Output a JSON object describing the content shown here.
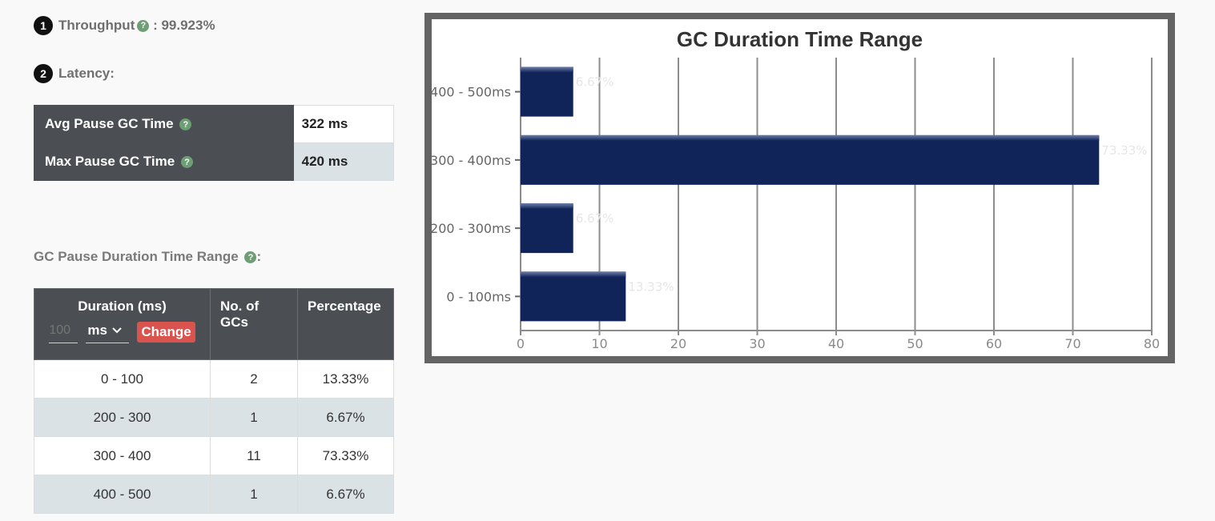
{
  "throughput": {
    "number": "1",
    "label": "Throughput",
    "help": "?",
    "separator": " : ",
    "value": "99.923%"
  },
  "latency": {
    "number": "2",
    "label": "Latency:",
    "rows": [
      {
        "label": "Avg Pause GC Time",
        "value": "322 ms"
      },
      {
        "label": "Max Pause GC Time",
        "value": "420 ms"
      }
    ]
  },
  "range_section": {
    "heading": "GC Pause Duration Time Range",
    "heading_suffix": ":",
    "headers": {
      "duration": "Duration (ms)",
      "count": "No. of GCs",
      "percentage": "Percentage"
    },
    "unit_input_placeholder": "100",
    "unit_select_value": "ms",
    "change_label": "Change",
    "rows": [
      {
        "duration": "0 - 100",
        "count": "2",
        "percentage": "13.33%"
      },
      {
        "duration": "200 - 300",
        "count": "1",
        "percentage": "6.67%"
      },
      {
        "duration": "300 - 400",
        "count": "11",
        "percentage": "73.33%"
      },
      {
        "duration": "400 - 500",
        "count": "1",
        "percentage": "6.67%"
      }
    ]
  },
  "chart_data": {
    "type": "bar",
    "orientation": "horizontal",
    "title": "GC Duration Time Range",
    "categories": [
      "400 - 500ms",
      "300 - 400ms",
      "200 - 300ms",
      "0 - 100ms"
    ],
    "values": [
      6.67,
      73.33,
      6.67,
      13.33
    ],
    "data_labels": [
      "6.67%",
      "73.33%",
      "6.67%",
      "13.33%"
    ],
    "x_ticks": [
      0,
      10,
      20,
      30,
      40,
      50,
      60,
      70,
      80
    ],
    "xlim": [
      0,
      80
    ],
    "grid": true,
    "bar_color": "#10245a"
  }
}
